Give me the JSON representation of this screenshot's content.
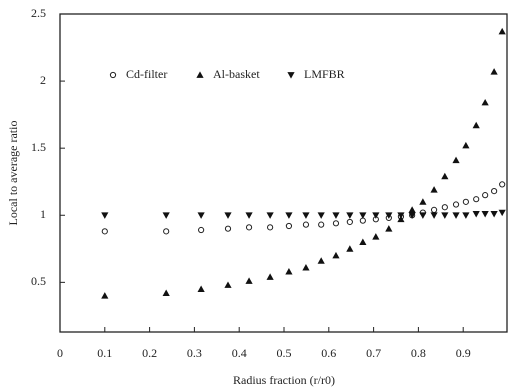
{
  "chart_data": {
    "type": "scatter",
    "xlabel": "Radius fraction (r/r0)",
    "ylabel": "Local to average ratio",
    "x": [
      0.1,
      0.237,
      0.315,
      0.375,
      0.422,
      0.469,
      0.511,
      0.549,
      0.583,
      0.616,
      0.647,
      0.676,
      0.705,
      0.734,
      0.761,
      0.786,
      0.81,
      0.835,
      0.859,
      0.884,
      0.906,
      0.929,
      0.949,
      0.969,
      0.987
    ],
    "series": [
      {
        "name": "Cd-filter",
        "color": "#222222",
        "marker": "circle-open",
        "values": [
          0.88,
          0.88,
          0.89,
          0.9,
          0.91,
          0.91,
          0.92,
          0.93,
          0.93,
          0.94,
          0.95,
          0.96,
          0.97,
          0.98,
          0.99,
          1.0,
          1.02,
          1.04,
          1.06,
          1.08,
          1.1,
          1.12,
          1.15,
          1.18,
          1.23
        ]
      },
      {
        "name": "Al-basket",
        "color": "#111111",
        "marker": "triangle-up",
        "values": [
          0.4,
          0.42,
          0.45,
          0.48,
          0.51,
          0.54,
          0.58,
          0.61,
          0.66,
          0.7,
          0.75,
          0.8,
          0.84,
          0.9,
          0.97,
          1.04,
          1.1,
          1.19,
          1.29,
          1.41,
          1.52,
          1.67,
          1.84,
          2.07,
          2.37
        ]
      },
      {
        "name": "LMFBR",
        "color": "#111111",
        "marker": "triangle-down",
        "values": [
          1,
          1,
          1,
          1,
          1,
          1,
          1,
          1,
          1,
          1,
          1,
          1,
          1,
          1,
          1,
          1,
          1,
          1,
          1,
          1,
          1,
          1.01,
          1.01,
          1.01,
          1.02
        ]
      }
    ],
    "xlim": [
      0,
      1
    ],
    "xticks": [
      0,
      0.1,
      0.2,
      0.3,
      0.4,
      0.5,
      0.6,
      0.7,
      0.8,
      0.9
    ],
    "ylim": [
      0.13,
      2.5
    ],
    "yticks": [
      0.5,
      1,
      1.5,
      2,
      2.5
    ],
    "legend": "upper left",
    "grid": false
  }
}
